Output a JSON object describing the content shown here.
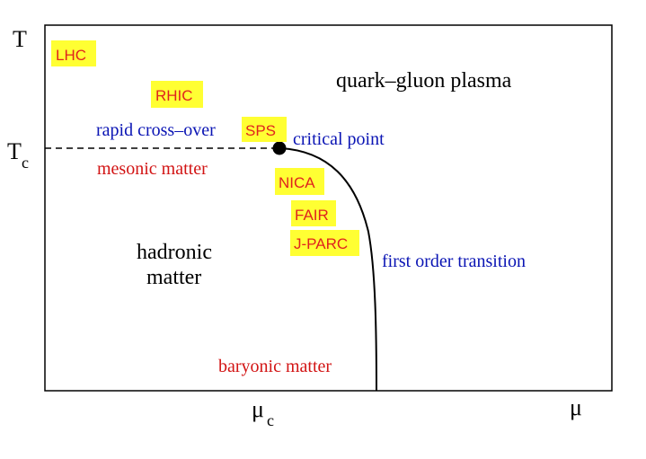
{
  "axes": {
    "y_label": "T",
    "x_label": "μ",
    "tc_main": "T",
    "tc_sub": "c",
    "muc_main": "μ",
    "muc_sub": "c"
  },
  "regions": {
    "qgp": "quark–gluon plasma",
    "hadronic_line1": "hadronic",
    "hadronic_line2": "matter",
    "mesonic": "mesonic matter",
    "baryonic": "baryonic matter"
  },
  "features": {
    "crossover": "rapid cross–over",
    "critical_point": "critical point",
    "first_order": "first order transition"
  },
  "experiments": {
    "lhc": "LHC",
    "rhic": "RHIC",
    "sps": "SPS",
    "nica": "NICA",
    "fair": "FAIR",
    "jparc": "J-PARC"
  },
  "colors": {
    "blue": "#0a14b4",
    "red": "#d21414",
    "black": "#000000",
    "highlight": "#ffff33",
    "highlight_text": "#e0231e"
  }
}
